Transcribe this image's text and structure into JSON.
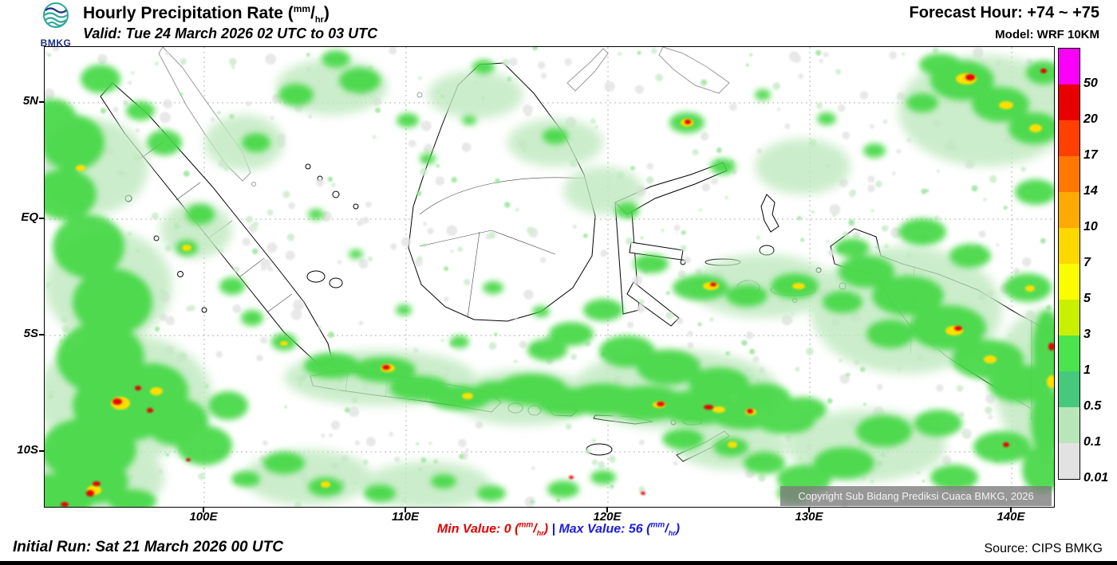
{
  "header": {
    "logo_text": "BMKG",
    "title_prefix": "Hourly Precipitation Rate (",
    "title_suffix": ")",
    "valid": "Valid: Tue 24 March 2026 02 UTC to 03 UTC",
    "forecast_hour": "Forecast Hour: +74 ~ +75",
    "model": "Model: WRF 10KM"
  },
  "units": {
    "num": "mm",
    "slash": "/",
    "den": "hr",
    "open": "(",
    "close": ")"
  },
  "map": {
    "lat_labels": [
      "5N",
      "EQ",
      "5S",
      "10S"
    ],
    "lon_labels": [
      "100E",
      "110E",
      "120E",
      "130E",
      "140E"
    ],
    "copyright": "Copyright Sub Bidang Prediksi Cuaca BMKG, 2026"
  },
  "legend": {
    "values": [
      "50",
      "20",
      "17",
      "14",
      "10",
      "7",
      "5",
      "3",
      "1",
      "0.5",
      "0.1",
      "0.01"
    ],
    "colors": [
      "#fa00fa",
      "#e80000",
      "#ff4000",
      "#ff7800",
      "#ffaa00",
      "#ffd800",
      "#fcfc00",
      "#c8f000",
      "#4ce44c",
      "#46c87d",
      "#b9e6b9",
      "#e2e2e2"
    ]
  },
  "footer": {
    "min_label": "Min Value:",
    "min_value": "0",
    "sep": "|",
    "max_label": "Max Value:",
    "max_value": "56",
    "min_color": "#e00000",
    "max_color": "#1a1ae0",
    "initial_run": "Initial Run: Sat 21 March 2026 00 UTC",
    "source": "Source: CIPS BMKG"
  }
}
